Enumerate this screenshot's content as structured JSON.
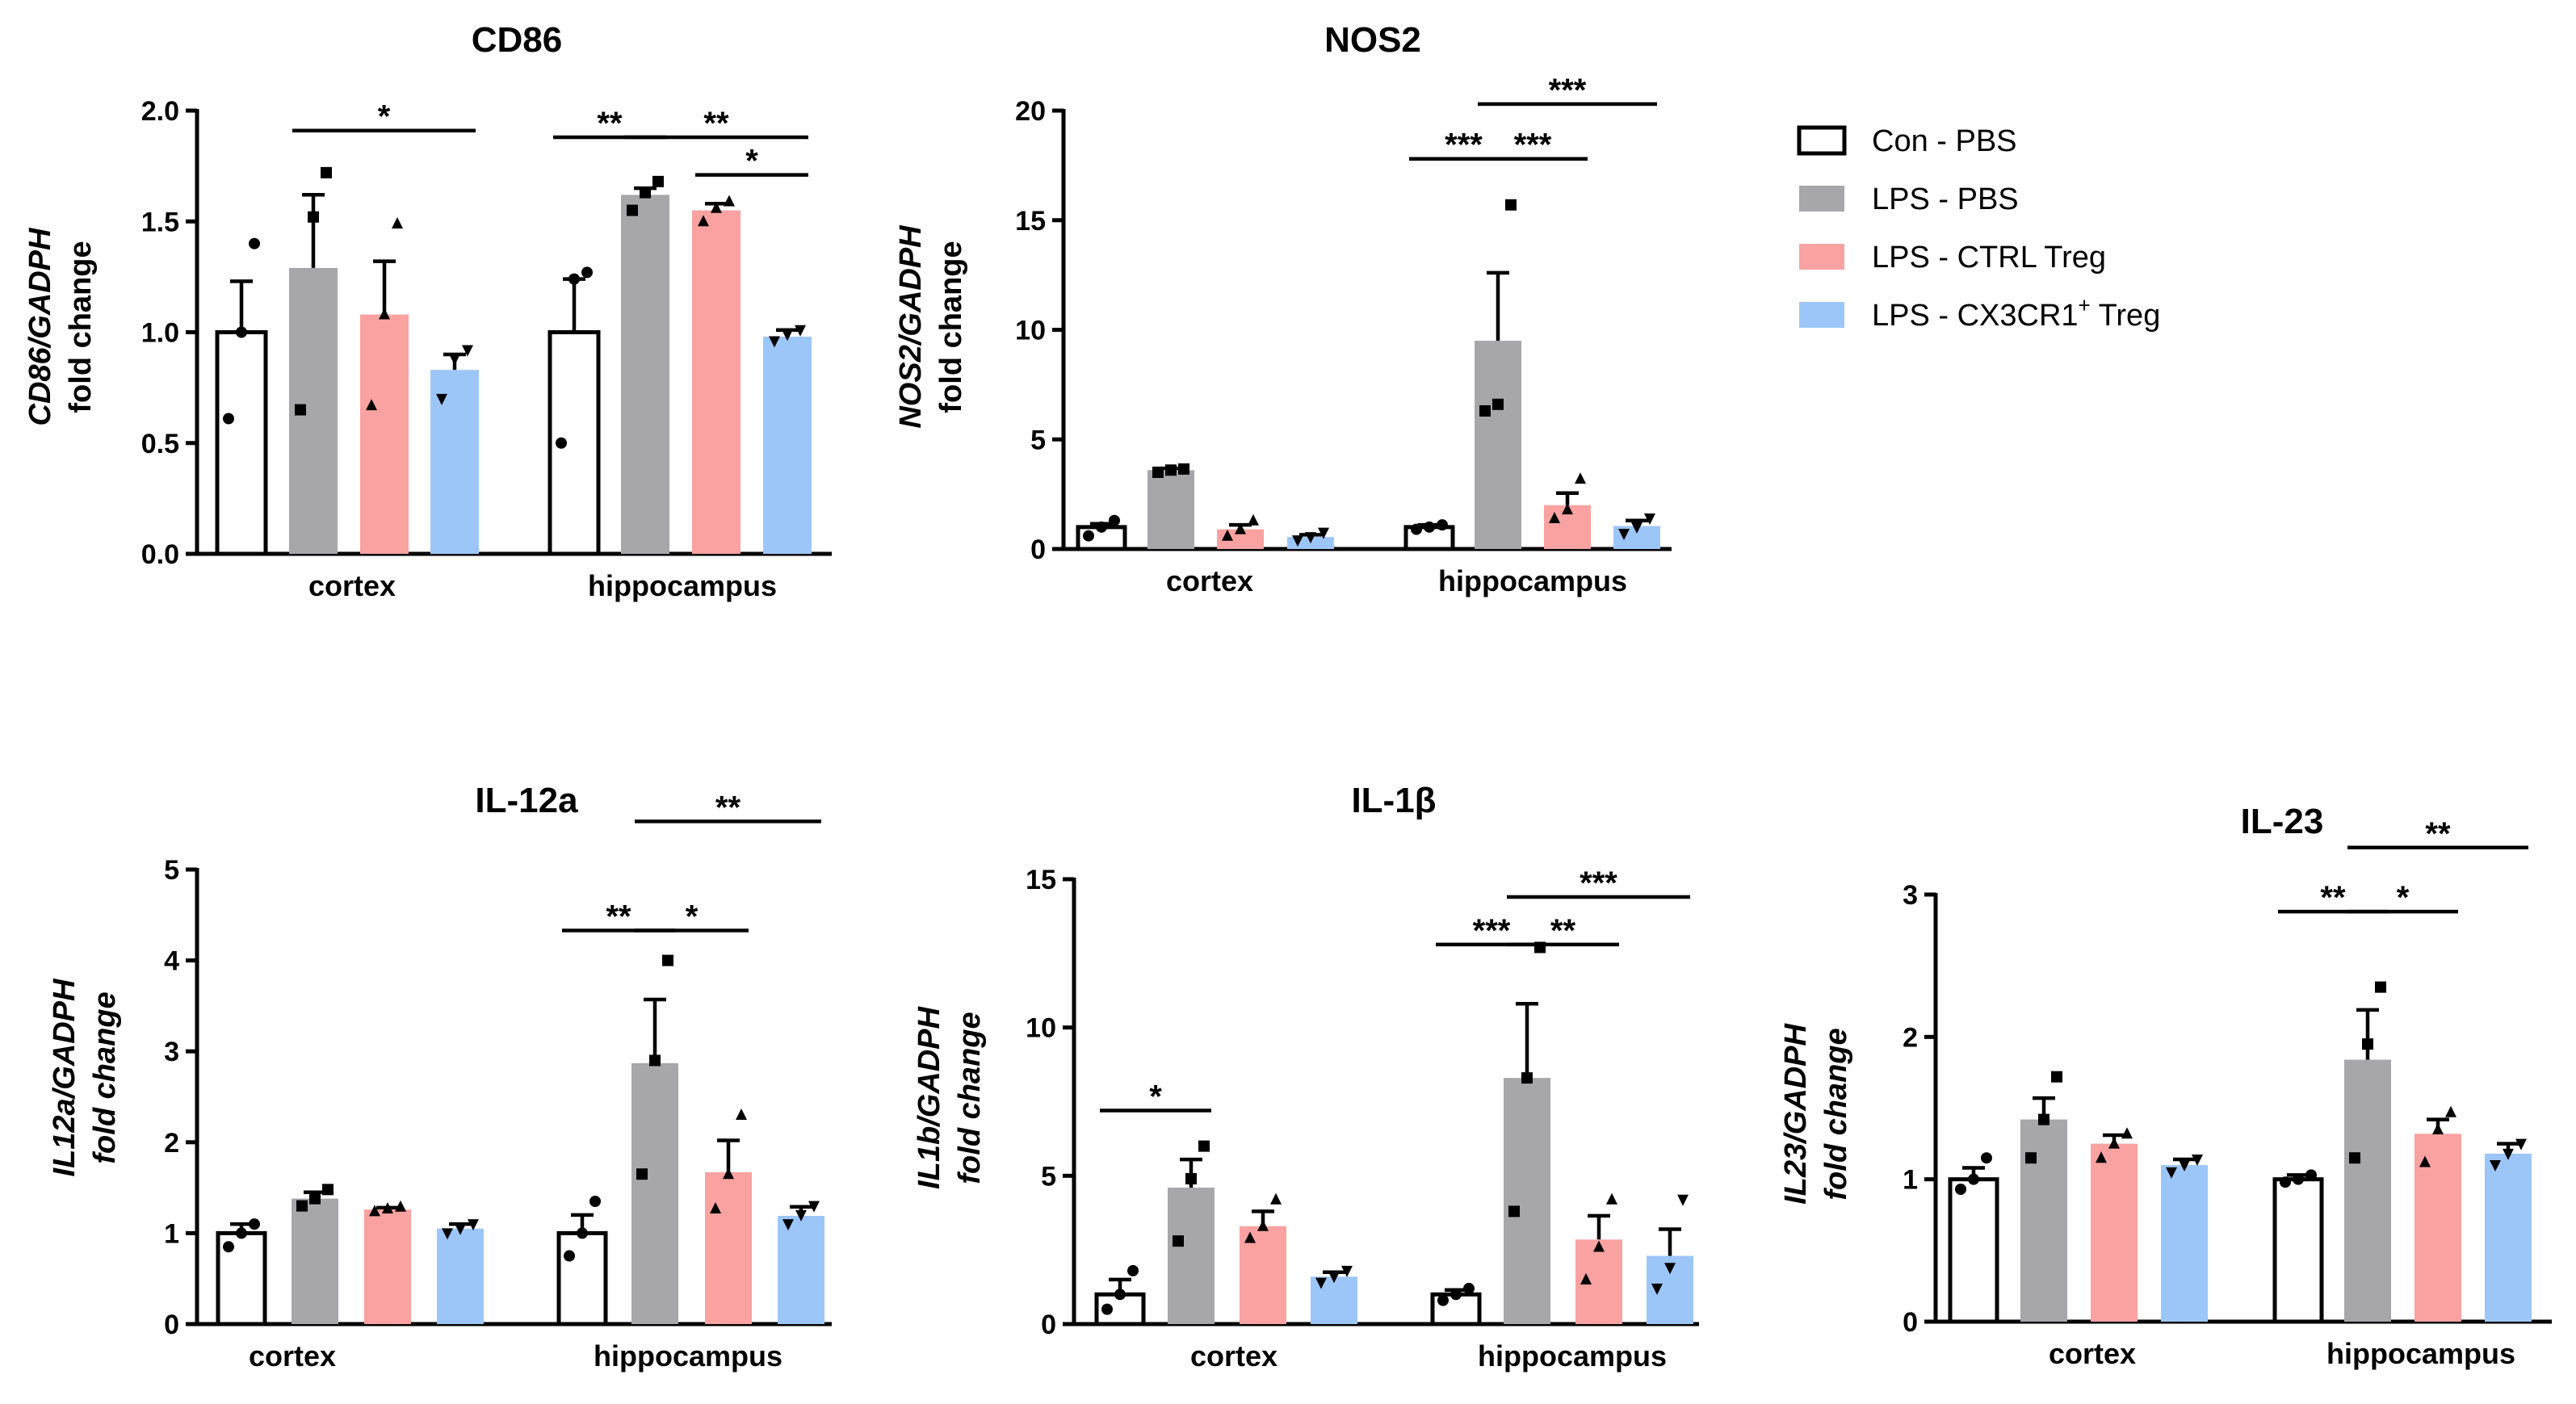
{
  "legend": {
    "items": [
      {
        "label": "Con - PBS",
        "color": "#ffffff"
      },
      {
        "label": "LPS - PBS",
        "color": "#a7a6ab"
      },
      {
        "label": "LPS - CTRL Treg",
        "color": "#f9a2a1"
      },
      {
        "label": "LPS - CX3CR1",
        "sup": "+",
        "label_after": " Treg",
        "color": "#9dc6f8"
      }
    ]
  },
  "chart_data": [
    {
      "type": "bar",
      "title": "CD86",
      "ylabel_italic": "CD86/GADPH",
      "ylabel_second": "fold change",
      "ylim": [
        0,
        2.0
      ],
      "yticks": [
        "0.0",
        "0.5",
        "1.0",
        "1.5",
        "2.0"
      ],
      "ytick_values": [
        0,
        0.5,
        1.0,
        1.5,
        2.0
      ],
      "categories": [
        "cortex",
        "hippocampus"
      ],
      "series": [
        {
          "name": "Con - PBS",
          "values": [
            1.0,
            1.0
          ],
          "errors": [
            0.23,
            0.24
          ],
          "points": [
            [
              0.61,
              1.0,
              1.4
            ],
            [
              0.5,
              1.24,
              1.27
            ]
          ],
          "marker": "circle"
        },
        {
          "name": "LPS - PBS",
          "values": [
            1.29,
            1.62
          ],
          "errors": [
            0.33,
            0.03
          ],
          "points": [
            [
              0.65,
              1.52,
              1.72
            ],
            [
              1.55,
              1.63,
              1.68
            ]
          ],
          "marker": "square"
        },
        {
          "name": "LPS - CTRL Treg",
          "values": [
            1.08,
            1.55
          ],
          "errors": [
            0.24,
            0.03
          ],
          "points": [
            [
              0.67,
              1.08,
              1.49
            ],
            [
              1.5,
              1.56,
              1.59
            ]
          ],
          "marker": "triangle"
        },
        {
          "name": "LPS - CX3CR1+ Treg",
          "values": [
            0.83,
            0.98
          ],
          "errors": [
            0.07,
            0.03
          ],
          "points": [
            [
              0.7,
              0.88,
              0.92
            ],
            [
              0.96,
              0.99,
              1.01
            ]
          ],
          "marker": "triangle-down"
        }
      ],
      "significance": [
        {
          "label": "*",
          "from": [
            0,
            1
          ],
          "to": [
            0,
            3
          ],
          "y": 1.91
        },
        {
          "label": "**",
          "from": [
            1,
            0
          ],
          "to": [
            1,
            1
          ],
          "y": 1.88
        },
        {
          "label": "**",
          "from": [
            1,
            1
          ],
          "to": [
            1,
            3
          ],
          "y": 1.88
        },
        {
          "label": "*",
          "from": [
            1,
            2
          ],
          "to": [
            1,
            3
          ],
          "y": 1.71
        }
      ]
    },
    {
      "type": "bar",
      "title": "NOS2",
      "ylabel_italic": "NOS2/GADPH",
      "ylabel_second": "fold change",
      "ylim": [
        0,
        20
      ],
      "yticks": [
        "0",
        "5",
        "10",
        "15",
        "20"
      ],
      "ytick_values": [
        0,
        5,
        10,
        15,
        20
      ],
      "categories": [
        "cortex",
        "hippocampus"
      ],
      "series": [
        {
          "name": "Con - PBS",
          "values": [
            1.0,
            1.0
          ],
          "errors": [
            0.15,
            0.1
          ],
          "points": [
            [
              0.6,
              1.0,
              1.3
            ],
            [
              0.9,
              1.0,
              1.1
            ]
          ],
          "marker": "circle"
        },
        {
          "name": "LPS - PBS",
          "values": [
            3.6,
            9.5
          ],
          "errors": [
            0.08,
            3.1
          ],
          "points": [
            [
              3.5,
              3.6,
              3.65
            ],
            [
              6.3,
              6.6,
              15.7
            ]
          ],
          "marker": "square"
        },
        {
          "name": "LPS - CTRL Treg",
          "values": [
            0.9,
            2.0
          ],
          "errors": [
            0.2,
            0.55
          ],
          "points": [
            [
              0.6,
              0.9,
              1.3
            ],
            [
              1.4,
              1.8,
              3.2
            ]
          ],
          "marker": "triangle"
        },
        {
          "name": "LPS - CX3CR1+ Treg",
          "values": [
            0.55,
            1.05
          ],
          "errors": [
            0.1,
            0.25
          ],
          "points": [
            [
              0.4,
              0.55,
              0.75
            ],
            [
              0.7,
              1.0,
              1.4
            ]
          ],
          "marker": "triangle-down"
        }
      ],
      "significance": [
        {
          "label": "***",
          "from": [
            1,
            0
          ],
          "to": [
            1,
            1
          ],
          "y": 17.8
        },
        {
          "label": "***",
          "from": [
            1,
            1
          ],
          "to": [
            1,
            2
          ],
          "y": 17.8
        },
        {
          "label": "***",
          "from": [
            1,
            1
          ],
          "to": [
            1,
            3
          ],
          "y": 20.3
        }
      ]
    },
    {
      "type": "bar",
      "title": "IL-12a",
      "ylabel_italic": "IL12a/GADPH",
      "ylabel_second": "fold change",
      "ylabel_second_italic": true,
      "ylim": [
        0,
        5
      ],
      "yticks": [
        "0",
        "1",
        "2",
        "3",
        "4",
        "5"
      ],
      "ytick_values": [
        0,
        1,
        2,
        3,
        4,
        5
      ],
      "categories": [
        "cortex",
        "hippocampus"
      ],
      "series": [
        {
          "name": "Con - PBS",
          "values": [
            1.0,
            1.0
          ],
          "errors": [
            0.1,
            0.2
          ],
          "points": [
            [
              0.85,
              1.0,
              1.1
            ],
            [
              0.75,
              1.0,
              1.35
            ]
          ],
          "marker": "circle"
        },
        {
          "name": "LPS - PBS",
          "values": [
            1.38,
            2.87
          ],
          "errors": [
            0.07,
            0.7
          ],
          "points": [
            [
              1.3,
              1.38,
              1.48
            ],
            [
              1.65,
              2.9,
              4.0
            ]
          ],
          "marker": "square"
        },
        {
          "name": "LPS - CTRL Treg",
          "values": [
            1.26,
            1.67
          ],
          "errors": [
            0.02,
            0.35
          ],
          "points": [
            [
              1.24,
              1.27,
              1.29
            ],
            [
              1.27,
              1.65,
              2.3
            ]
          ],
          "marker": "triangle"
        },
        {
          "name": "LPS - CX3CR1+ Treg",
          "values": [
            1.05,
            1.19
          ],
          "errors": [
            0.05,
            0.1
          ],
          "points": [
            [
              1.0,
              1.05,
              1.1
            ],
            [
              1.1,
              1.2,
              1.3
            ]
          ],
          "marker": "triangle-down"
        }
      ],
      "significance": [
        {
          "label": "**",
          "from": [
            1,
            0
          ],
          "to": [
            1,
            1
          ],
          "y": 4.33
        },
        {
          "label": "*",
          "from": [
            1,
            1
          ],
          "to": [
            1,
            2
          ],
          "y": 4.33
        },
        {
          "label": "**",
          "from": [
            1,
            1
          ],
          "to": [
            1,
            3
          ],
          "y": 5.53
        }
      ]
    },
    {
      "type": "bar",
      "title": "IL-1β",
      "ylabel_italic": "IL1b/GADPH",
      "ylabel_second": "fold change",
      "ylabel_second_italic": true,
      "ylim": [
        0,
        15
      ],
      "yticks": [
        "0",
        "5",
        "10",
        "15"
      ],
      "ytick_values": [
        0,
        5,
        10,
        15
      ],
      "categories": [
        "cortex",
        "hippocampus"
      ],
      "series": [
        {
          "name": "Con - PBS",
          "values": [
            1.0,
            1.0
          ],
          "errors": [
            0.5,
            0.15
          ],
          "points": [
            [
              0.5,
              1.0,
              1.8
            ],
            [
              0.8,
              1.0,
              1.2
            ]
          ],
          "marker": "circle"
        },
        {
          "name": "LPS - PBS",
          "values": [
            4.6,
            8.3
          ],
          "errors": [
            0.95,
            2.5
          ],
          "points": [
            [
              2.8,
              4.9,
              6.0
            ],
            [
              3.8,
              8.3,
              12.7
            ]
          ],
          "marker": "square"
        },
        {
          "name": "LPS - CTRL Treg",
          "values": [
            3.3,
            2.85
          ],
          "errors": [
            0.5,
            0.8
          ],
          "points": [
            [
              2.9,
              3.3,
              4.2
            ],
            [
              1.5,
              2.6,
              4.2
            ]
          ],
          "marker": "triangle"
        },
        {
          "name": "LPS - CX3CR1+ Treg",
          "values": [
            1.6,
            2.3
          ],
          "errors": [
            0.15,
            0.9
          ],
          "points": [
            [
              1.4,
              1.6,
              1.8
            ],
            [
              1.2,
              1.9,
              4.2
            ]
          ],
          "marker": "triangle-down"
        }
      ],
      "significance": [
        {
          "label": "*",
          "from": [
            0,
            0
          ],
          "to": [
            0,
            1
          ],
          "y": 7.2
        },
        {
          "label": "***",
          "from": [
            1,
            0
          ],
          "to": [
            1,
            1
          ],
          "y": 12.8
        },
        {
          "label": "**",
          "from": [
            1,
            1
          ],
          "to": [
            1,
            2
          ],
          "y": 12.8
        },
        {
          "label": "***",
          "from": [
            1,
            1
          ],
          "to": [
            1,
            3
          ],
          "y": 14.4
        }
      ]
    },
    {
      "type": "bar",
      "title": "IL-23",
      "ylabel_italic": "IL23/GADPH",
      "ylabel_second": "fold change",
      "ylabel_second_italic": true,
      "ylim": [
        0,
        3
      ],
      "yticks": [
        "0",
        "1",
        "2",
        "3"
      ],
      "ytick_values": [
        0,
        1,
        2,
        3
      ],
      "categories": [
        "cortex",
        "hippocampus"
      ],
      "series": [
        {
          "name": "Con - PBS",
          "values": [
            1.0,
            1.0
          ],
          "errors": [
            0.08,
            0.03
          ],
          "points": [
            [
              0.93,
              1.0,
              1.15
            ],
            [
              0.98,
              1.0,
              1.03
            ]
          ],
          "marker": "circle"
        },
        {
          "name": "LPS - PBS",
          "values": [
            1.42,
            1.84
          ],
          "errors": [
            0.15,
            0.35
          ],
          "points": [
            [
              1.15,
              1.42,
              1.72
            ],
            [
              1.15,
              1.95,
              2.35
            ]
          ],
          "marker": "square"
        },
        {
          "name": "LPS - CTRL Treg",
          "values": [
            1.25,
            1.32
          ],
          "errors": [
            0.06,
            0.1
          ],
          "points": [
            [
              1.15,
              1.25,
              1.32
            ],
            [
              1.12,
              1.35,
              1.47
            ]
          ],
          "marker": "triangle"
        },
        {
          "name": "LPS - CX3CR1+ Treg",
          "values": [
            1.1,
            1.18
          ],
          "errors": [
            0.04,
            0.07
          ],
          "points": [
            [
              1.05,
              1.1,
              1.14
            ],
            [
              1.1,
              1.18,
              1.25
            ]
          ],
          "marker": "triangle-down"
        }
      ],
      "significance": [
        {
          "label": "**",
          "from": [
            1,
            0
          ],
          "to": [
            1,
            1
          ],
          "y": 2.88
        },
        {
          "label": "*",
          "from": [
            1,
            1
          ],
          "to": [
            1,
            2
          ],
          "y": 2.88
        },
        {
          "label": "**",
          "from": [
            1,
            1
          ],
          "to": [
            1,
            3
          ],
          "y": 3.33
        }
      ]
    }
  ]
}
